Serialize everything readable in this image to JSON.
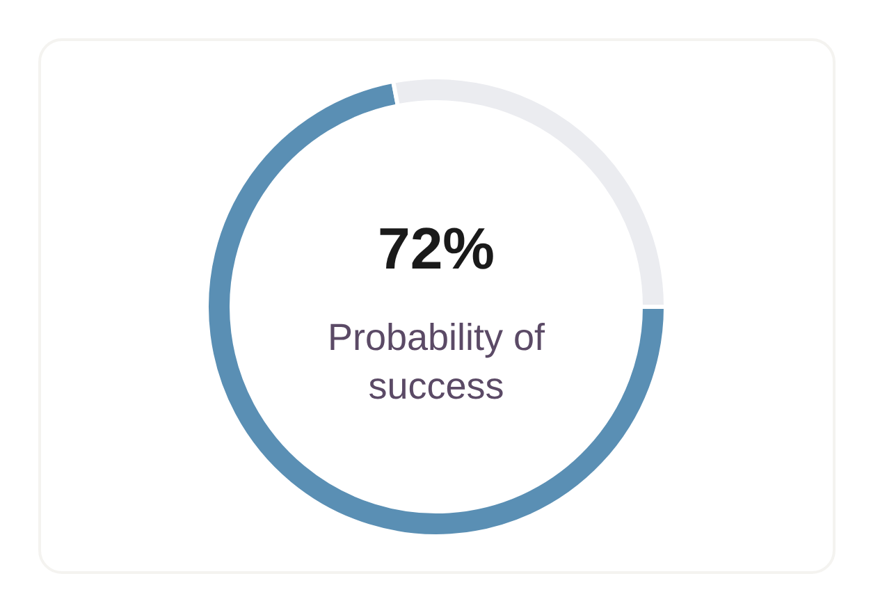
{
  "chart_data": {
    "type": "donut",
    "categories": [
      null,
      null
    ],
    "values": [
      72,
      28
    ],
    "colors": [
      "#5a8fb4",
      "#ebecf0"
    ],
    "annotations": [
      "72%",
      "Probability of success"
    ]
  }
}
